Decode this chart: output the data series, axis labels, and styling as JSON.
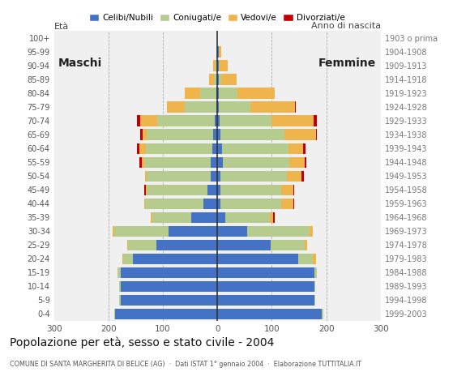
{
  "age_groups": [
    "0-4",
    "5-9",
    "10-14",
    "15-19",
    "20-24",
    "25-29",
    "30-34",
    "35-39",
    "40-44",
    "45-49",
    "50-54",
    "55-59",
    "60-64",
    "65-69",
    "70-74",
    "75-79",
    "80-84",
    "85-89",
    "90-94",
    "95-99",
    "100+"
  ],
  "birth_years": [
    "1999-2003",
    "1994-1998",
    "1989-1993",
    "1984-1988",
    "1979-1983",
    "1974-1978",
    "1969-1973",
    "1964-1968",
    "1959-1963",
    "1954-1958",
    "1949-1953",
    "1944-1948",
    "1939-1943",
    "1934-1938",
    "1929-1933",
    "1924-1928",
    "1919-1923",
    "1914-1918",
    "1909-1913",
    "1904-1908",
    "1903 o prima"
  ],
  "colors": {
    "celibinubili": "#4472c4",
    "coniugati": "#b5cc8e",
    "vedovi": "#f0b44c",
    "divorziati": "#c00000"
  },
  "males": {
    "celibinubili": [
      188,
      178,
      178,
      178,
      155,
      112,
      90,
      48,
      25,
      18,
      12,
      12,
      10,
      8,
      5,
      2,
      2,
      0,
      0,
      0,
      0
    ],
    "coniugati": [
      2,
      2,
      2,
      5,
      18,
      52,
      100,
      72,
      108,
      112,
      118,
      122,
      122,
      122,
      105,
      58,
      30,
      7,
      3,
      0,
      0
    ],
    "vedovi": [
      0,
      0,
      0,
      0,
      2,
      2,
      2,
      2,
      2,
      2,
      3,
      5,
      12,
      8,
      32,
      32,
      28,
      8,
      5,
      0,
      0
    ],
    "divorziati": [
      0,
      0,
      0,
      0,
      0,
      0,
      0,
      0,
      0,
      2,
      0,
      4,
      4,
      4,
      5,
      0,
      0,
      0,
      0,
      0,
      0
    ]
  },
  "females": {
    "celibinubili": [
      192,
      178,
      178,
      178,
      148,
      98,
      55,
      15,
      5,
      5,
      5,
      10,
      8,
      5,
      4,
      2,
      2,
      2,
      2,
      2,
      0
    ],
    "coniugati": [
      2,
      2,
      2,
      5,
      28,
      62,
      115,
      82,
      112,
      112,
      122,
      122,
      122,
      118,
      95,
      58,
      35,
      5,
      2,
      0,
      0
    ],
    "vedovi": [
      0,
      0,
      0,
      0,
      5,
      5,
      5,
      5,
      22,
      22,
      28,
      28,
      28,
      58,
      78,
      82,
      68,
      28,
      15,
      5,
      0
    ],
    "divorziati": [
      0,
      0,
      0,
      0,
      0,
      0,
      0,
      4,
      2,
      2,
      4,
      4,
      4,
      2,
      5,
      2,
      0,
      0,
      0,
      0,
      0
    ]
  },
  "xlim": 300,
  "title": "Popolazione per età, sesso e stato civile - 2004",
  "subtitle": "COMUNE DI SANTA MARGHERITA DI BELICE (AG)  ·  Dati ISTAT 1° gennaio 2004  ·  Elaborazione TUTTITALIA.IT",
  "ylabel_left": "Età",
  "ylabel_right": "Anno di nascita",
  "label_maschi": "Maschi",
  "label_femmine": "Femmine",
  "legend": [
    "Celibi/Nubili",
    "Coniugati/e",
    "Vedovi/e",
    "Divorziati/e"
  ],
  "bg_color": "#ffffff",
  "plot_bg": "#f0f0f0"
}
